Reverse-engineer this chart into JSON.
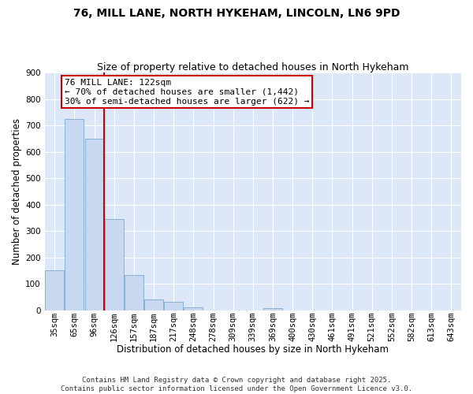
{
  "title": "76, MILL LANE, NORTH HYKEHAM, LINCOLN, LN6 9PD",
  "subtitle": "Size of property relative to detached houses in North Hykeham",
  "xlabel": "Distribution of detached houses by size in North Hykeham",
  "ylabel": "Number of detached properties",
  "bar_values": [
    153,
    725,
    650,
    345,
    133,
    43,
    32,
    12,
    0,
    0,
    0,
    10,
    0,
    0,
    0,
    0,
    0,
    0,
    0,
    0,
    0
  ],
  "bar_labels": [
    "35sqm",
    "65sqm",
    "96sqm",
    "126sqm",
    "157sqm",
    "187sqm",
    "217sqm",
    "248sqm",
    "278sqm",
    "309sqm",
    "339sqm",
    "369sqm",
    "400sqm",
    "430sqm",
    "461sqm",
    "491sqm",
    "521sqm",
    "552sqm",
    "582sqm",
    "613sqm",
    "643sqm"
  ],
  "ylim": [
    0,
    900
  ],
  "yticks": [
    0,
    100,
    200,
    300,
    400,
    500,
    600,
    700,
    800,
    900
  ],
  "bar_color": "#c8d8f0",
  "bar_edge_color": "#7aaad0",
  "vline_x": 3,
  "vline_color": "#cc0000",
  "annotation_text": "76 MILL LANE: 122sqm\n← 70% of detached houses are smaller (1,442)\n30% of semi-detached houses are larger (622) →",
  "annotation_box_color": "#ffffff",
  "annotation_box_edge": "#cc0000",
  "background_color": "#dce8f8",
  "grid_color": "#ffffff",
  "fig_background": "#ffffff",
  "footer_text": "Contains HM Land Registry data © Crown copyright and database right 2025.\nContains public sector information licensed under the Open Government Licence v3.0.",
  "title_fontsize": 10,
  "subtitle_fontsize": 9,
  "axis_label_fontsize": 8.5,
  "tick_fontsize": 7.5,
  "annot_fontsize": 8,
  "footer_fontsize": 6.5
}
